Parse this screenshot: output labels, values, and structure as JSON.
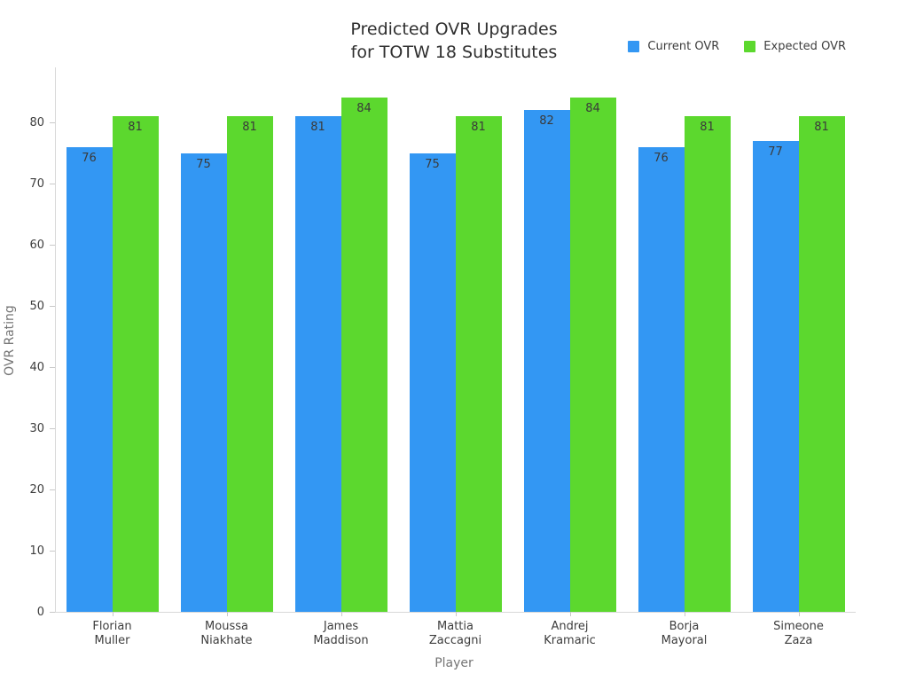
{
  "title": {
    "line1": "Predicted OVR Upgrades",
    "line2": "for TOTW 18 Substitutes"
  },
  "chart_data": {
    "type": "bar",
    "title": "Predicted OVR Upgrades for TOTW 18 Substitutes",
    "xlabel": "Player",
    "ylabel": "OVR Rating",
    "categories": [
      "Florian\nMuller",
      "Moussa\nNiakhate",
      "James\nMaddison",
      "Mattia\nZaccagni",
      "Andrej\nKramaric",
      "Borja\nMayoral",
      "Simeone\nZaza"
    ],
    "series": [
      {
        "name": "Current OVR",
        "color": "#3397f3",
        "values": [
          76,
          75,
          81,
          75,
          82,
          76,
          77
        ]
      },
      {
        "name": "Expected OVR",
        "color": "#5cd82e",
        "values": [
          81,
          81,
          84,
          81,
          84,
          81,
          81
        ]
      }
    ],
    "yticks": [
      0,
      10,
      20,
      30,
      40,
      50,
      60,
      70,
      80
    ],
    "ylim": [
      0,
      89
    ],
    "grid": false,
    "legend_position": "top-right",
    "bar_value_labels": true
  }
}
